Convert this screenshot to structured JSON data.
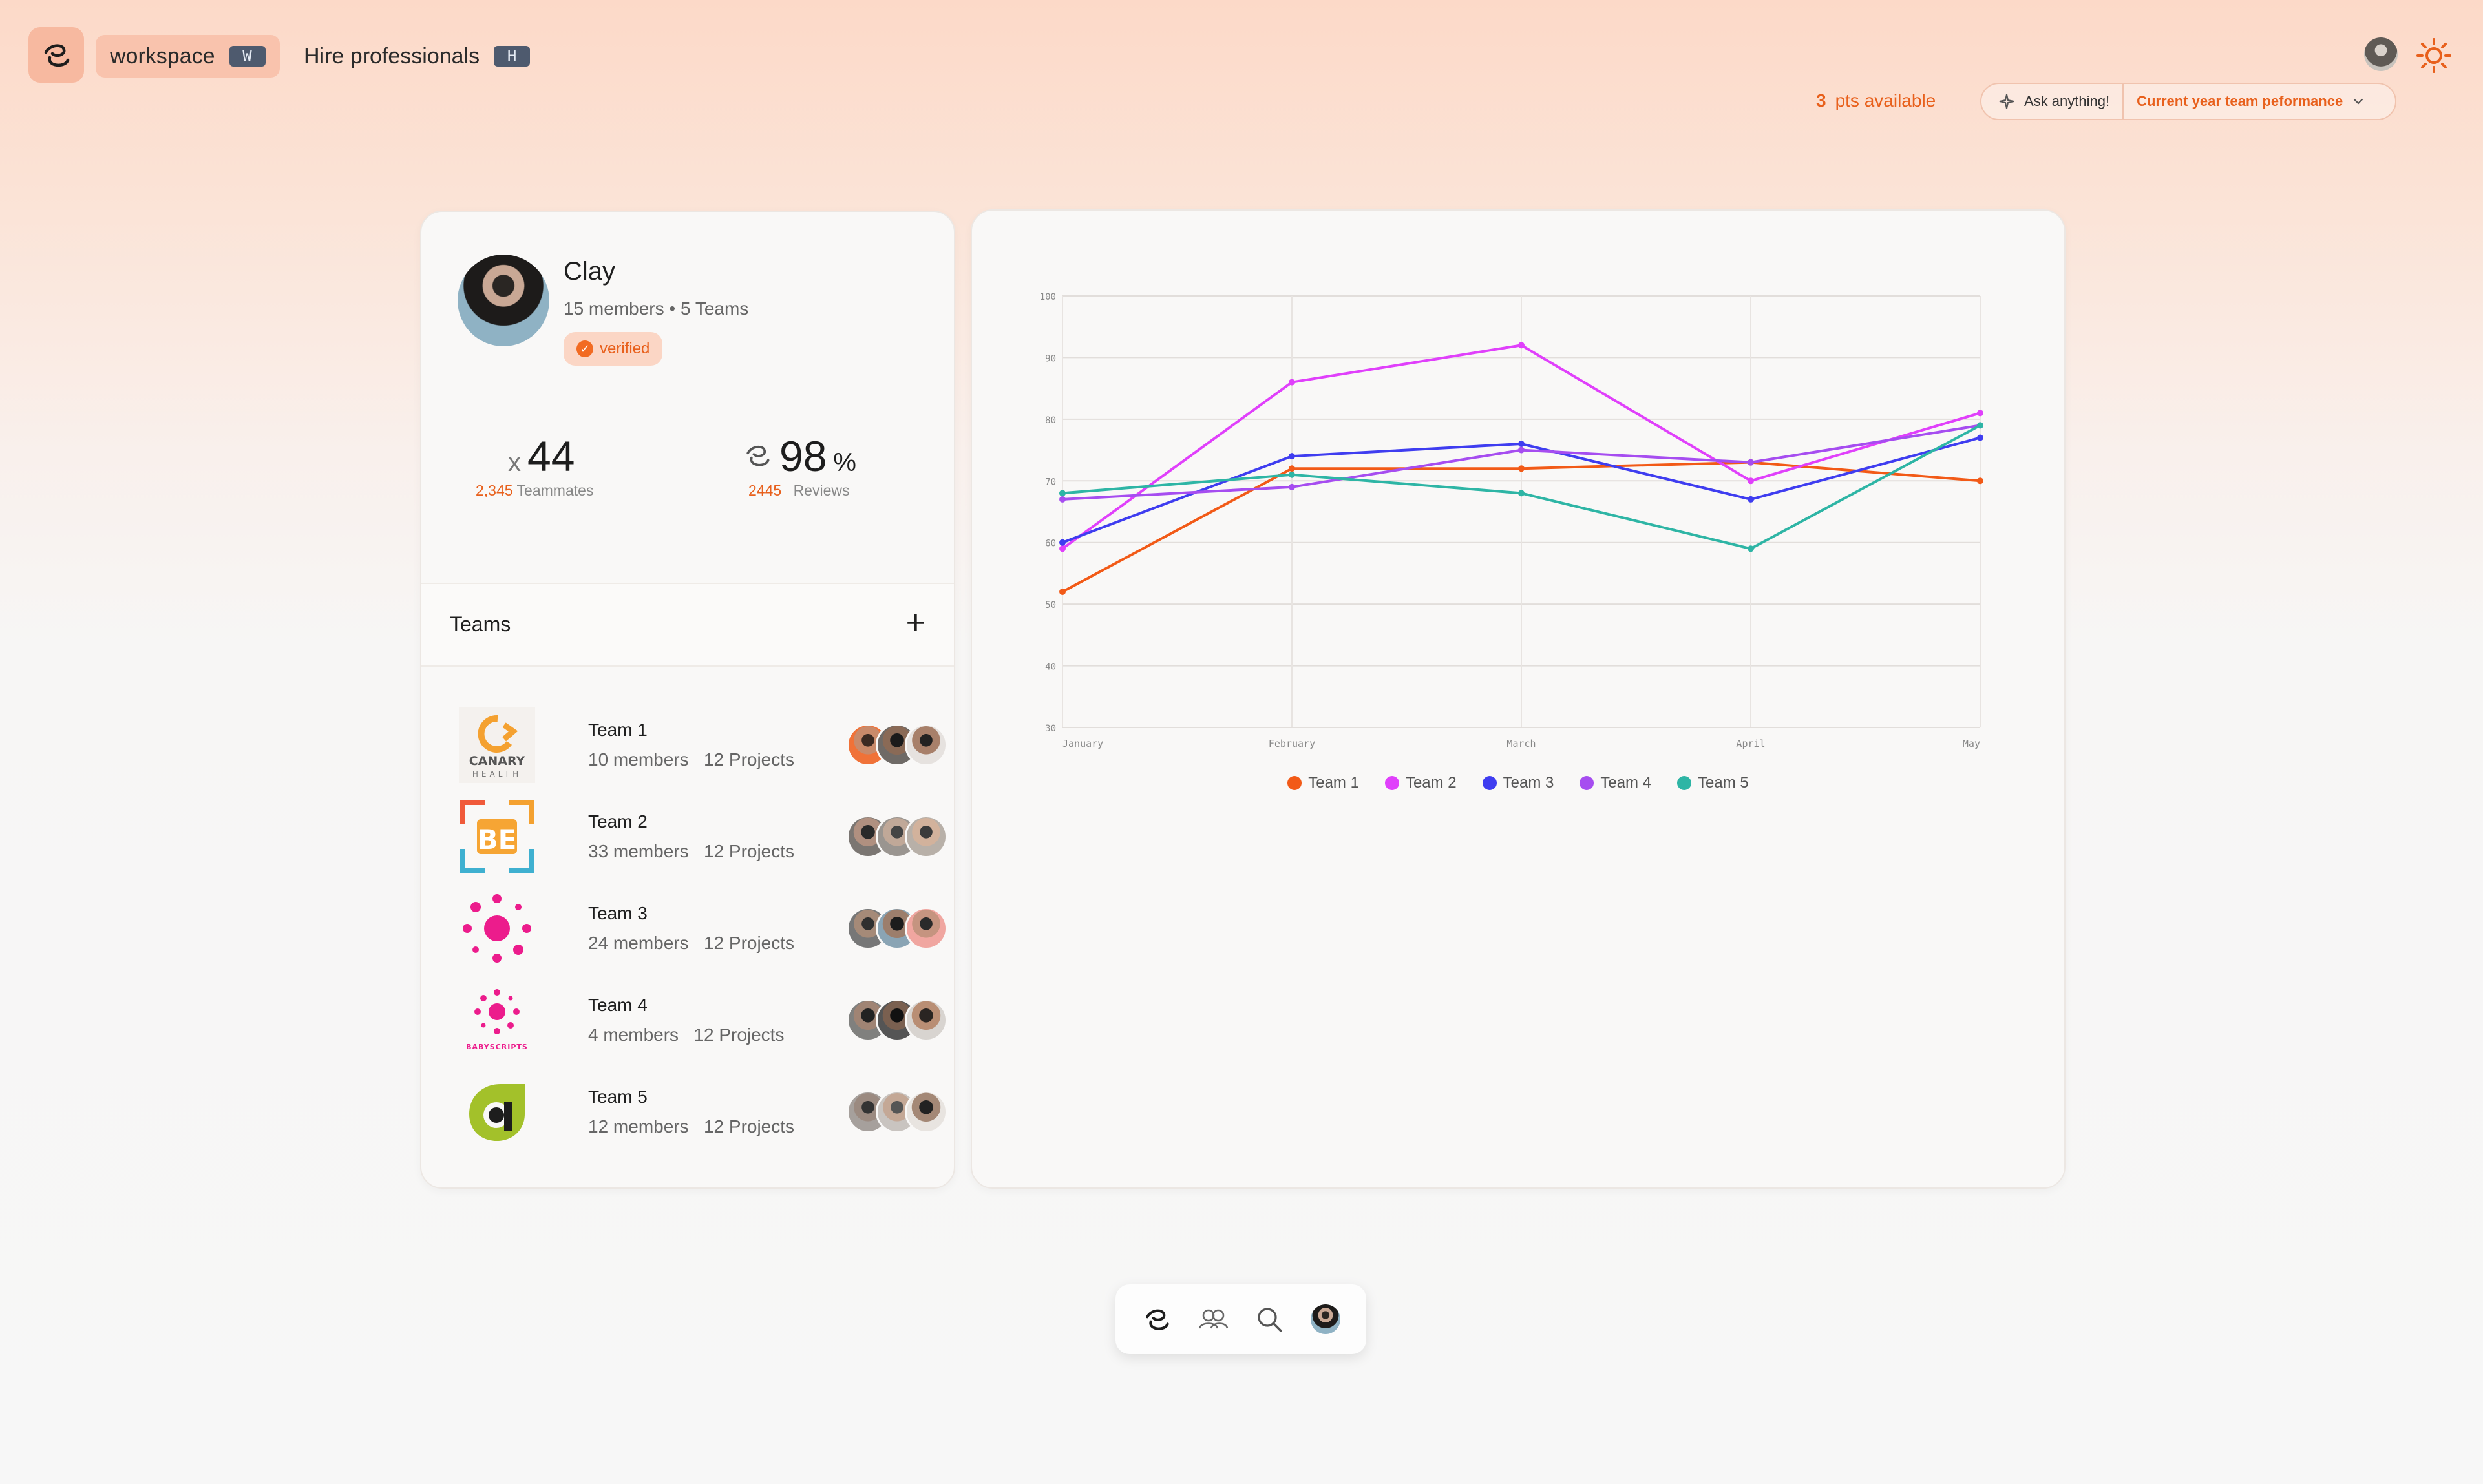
{
  "topbar": {
    "workspace_label": "workspace",
    "workspace_key": "W",
    "hire_label": "Hire professionals",
    "hire_key": "H",
    "points_count": "3",
    "points_label": "pts available",
    "ask_label": "Ask anything!",
    "ask_selected": "Current year team peformance"
  },
  "profile": {
    "name": "Clay",
    "meta": "15 members • 5 Teams",
    "verified_label": "verified",
    "stat1": {
      "prefix": "x",
      "value": "44",
      "sub_count": "2,345",
      "sub_label": "Teammates"
    },
    "stat2": {
      "value": "98",
      "unit": "%",
      "sub_count": "2445",
      "sub_label": "Reviews"
    }
  },
  "teams": {
    "title": "Teams",
    "items": [
      {
        "name": "Team 1",
        "members": "10 members",
        "projects": "12 Projects",
        "logo_text": "CANARY",
        "logo_sub": "HEALTH"
      },
      {
        "name": "Team 2",
        "members": "33 members",
        "projects": "12 Projects",
        "logo_text": "BE"
      },
      {
        "name": "Team 3",
        "members": "24 members",
        "projects": "12 Projects"
      },
      {
        "name": "Team 4",
        "members": "4 members",
        "projects": "12 Projects",
        "logo_text": "BABYSCRIPTS"
      },
      {
        "name": "Team 5",
        "members": "12 members",
        "projects": "12 Projects"
      }
    ]
  },
  "colors": {
    "accent": "#e8601c",
    "team1": "#f25a17",
    "team2": "#e040fb",
    "team3": "#3f3df0",
    "team4": "#a64df0",
    "team5": "#2eb5a5"
  },
  "chart_data": {
    "type": "line",
    "categories": [
      "January",
      "February",
      "March",
      "April",
      "May"
    ],
    "ylim": [
      30,
      100
    ],
    "yticks": [
      30,
      40,
      50,
      60,
      70,
      80,
      90,
      100
    ],
    "grid": true,
    "legend": "bottom",
    "series": [
      {
        "name": "Team 1",
        "color": "#f25a17",
        "values": [
          52,
          72,
          72,
          73,
          70
        ]
      },
      {
        "name": "Team 2",
        "color": "#e040fb",
        "values": [
          59,
          86,
          92,
          70,
          81
        ]
      },
      {
        "name": "Team 3",
        "color": "#3f3df0",
        "values": [
          60,
          74,
          76,
          67,
          77
        ]
      },
      {
        "name": "Team 4",
        "color": "#a64df0",
        "values": [
          67,
          69,
          75,
          73,
          79
        ]
      },
      {
        "name": "Team 5",
        "color": "#2eb5a5",
        "values": [
          68,
          71,
          68,
          59,
          79
        ]
      }
    ]
  },
  "icons": {
    "logo": "curl-logo-icon",
    "theme": "sun-icon",
    "sparkle": "sparkle-icon",
    "chevron": "chevron-down-icon",
    "dock": [
      "home-logo-icon",
      "people-icon",
      "search-icon",
      "user-avatar"
    ]
  }
}
